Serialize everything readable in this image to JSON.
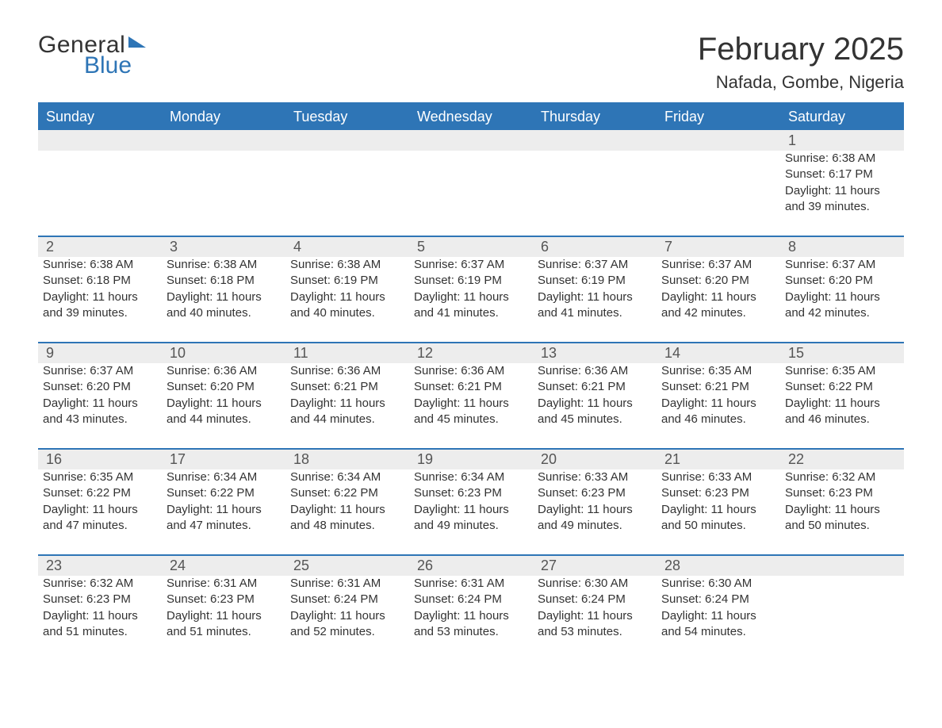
{
  "brand": {
    "general": "General",
    "blue": "Blue"
  },
  "title": "February 2025",
  "location": "Nafada, Gombe, Nigeria",
  "weekday_labels": [
    "Sunday",
    "Monday",
    "Tuesday",
    "Wednesday",
    "Thursday",
    "Friday",
    "Saturday"
  ],
  "style": {
    "header_bg": "#2e75b6",
    "header_fg": "#ffffff",
    "daynum_bg": "#ededed",
    "row_divider": "#2e75b6",
    "text_color": "#333333",
    "title_fontsize": 40,
    "location_fontsize": 22,
    "weekday_fontsize": 18,
    "body_fontsize": 15,
    "page_bg": "#ffffff"
  },
  "weeks": [
    [
      null,
      null,
      null,
      null,
      null,
      null,
      {
        "n": "1",
        "sunrise": "Sunrise: 6:38 AM",
        "sunset": "Sunset: 6:17 PM",
        "daylight": "Daylight: 11 hours and 39 minutes."
      }
    ],
    [
      {
        "n": "2",
        "sunrise": "Sunrise: 6:38 AM",
        "sunset": "Sunset: 6:18 PM",
        "daylight": "Daylight: 11 hours and 39 minutes."
      },
      {
        "n": "3",
        "sunrise": "Sunrise: 6:38 AM",
        "sunset": "Sunset: 6:18 PM",
        "daylight": "Daylight: 11 hours and 40 minutes."
      },
      {
        "n": "4",
        "sunrise": "Sunrise: 6:38 AM",
        "sunset": "Sunset: 6:19 PM",
        "daylight": "Daylight: 11 hours and 40 minutes."
      },
      {
        "n": "5",
        "sunrise": "Sunrise: 6:37 AM",
        "sunset": "Sunset: 6:19 PM",
        "daylight": "Daylight: 11 hours and 41 minutes."
      },
      {
        "n": "6",
        "sunrise": "Sunrise: 6:37 AM",
        "sunset": "Sunset: 6:19 PM",
        "daylight": "Daylight: 11 hours and 41 minutes."
      },
      {
        "n": "7",
        "sunrise": "Sunrise: 6:37 AM",
        "sunset": "Sunset: 6:20 PM",
        "daylight": "Daylight: 11 hours and 42 minutes."
      },
      {
        "n": "8",
        "sunrise": "Sunrise: 6:37 AM",
        "sunset": "Sunset: 6:20 PM",
        "daylight": "Daylight: 11 hours and 42 minutes."
      }
    ],
    [
      {
        "n": "9",
        "sunrise": "Sunrise: 6:37 AM",
        "sunset": "Sunset: 6:20 PM",
        "daylight": "Daylight: 11 hours and 43 minutes."
      },
      {
        "n": "10",
        "sunrise": "Sunrise: 6:36 AM",
        "sunset": "Sunset: 6:20 PM",
        "daylight": "Daylight: 11 hours and 44 minutes."
      },
      {
        "n": "11",
        "sunrise": "Sunrise: 6:36 AM",
        "sunset": "Sunset: 6:21 PM",
        "daylight": "Daylight: 11 hours and 44 minutes."
      },
      {
        "n": "12",
        "sunrise": "Sunrise: 6:36 AM",
        "sunset": "Sunset: 6:21 PM",
        "daylight": "Daylight: 11 hours and 45 minutes."
      },
      {
        "n": "13",
        "sunrise": "Sunrise: 6:36 AM",
        "sunset": "Sunset: 6:21 PM",
        "daylight": "Daylight: 11 hours and 45 minutes."
      },
      {
        "n": "14",
        "sunrise": "Sunrise: 6:35 AM",
        "sunset": "Sunset: 6:21 PM",
        "daylight": "Daylight: 11 hours and 46 minutes."
      },
      {
        "n": "15",
        "sunrise": "Sunrise: 6:35 AM",
        "sunset": "Sunset: 6:22 PM",
        "daylight": "Daylight: 11 hours and 46 minutes."
      }
    ],
    [
      {
        "n": "16",
        "sunrise": "Sunrise: 6:35 AM",
        "sunset": "Sunset: 6:22 PM",
        "daylight": "Daylight: 11 hours and 47 minutes."
      },
      {
        "n": "17",
        "sunrise": "Sunrise: 6:34 AM",
        "sunset": "Sunset: 6:22 PM",
        "daylight": "Daylight: 11 hours and 47 minutes."
      },
      {
        "n": "18",
        "sunrise": "Sunrise: 6:34 AM",
        "sunset": "Sunset: 6:22 PM",
        "daylight": "Daylight: 11 hours and 48 minutes."
      },
      {
        "n": "19",
        "sunrise": "Sunrise: 6:34 AM",
        "sunset": "Sunset: 6:23 PM",
        "daylight": "Daylight: 11 hours and 49 minutes."
      },
      {
        "n": "20",
        "sunrise": "Sunrise: 6:33 AM",
        "sunset": "Sunset: 6:23 PM",
        "daylight": "Daylight: 11 hours and 49 minutes."
      },
      {
        "n": "21",
        "sunrise": "Sunrise: 6:33 AM",
        "sunset": "Sunset: 6:23 PM",
        "daylight": "Daylight: 11 hours and 50 minutes."
      },
      {
        "n": "22",
        "sunrise": "Sunrise: 6:32 AM",
        "sunset": "Sunset: 6:23 PM",
        "daylight": "Daylight: 11 hours and 50 minutes."
      }
    ],
    [
      {
        "n": "23",
        "sunrise": "Sunrise: 6:32 AM",
        "sunset": "Sunset: 6:23 PM",
        "daylight": "Daylight: 11 hours and 51 minutes."
      },
      {
        "n": "24",
        "sunrise": "Sunrise: 6:31 AM",
        "sunset": "Sunset: 6:23 PM",
        "daylight": "Daylight: 11 hours and 51 minutes."
      },
      {
        "n": "25",
        "sunrise": "Sunrise: 6:31 AM",
        "sunset": "Sunset: 6:24 PM",
        "daylight": "Daylight: 11 hours and 52 minutes."
      },
      {
        "n": "26",
        "sunrise": "Sunrise: 6:31 AM",
        "sunset": "Sunset: 6:24 PM",
        "daylight": "Daylight: 11 hours and 53 minutes."
      },
      {
        "n": "27",
        "sunrise": "Sunrise: 6:30 AM",
        "sunset": "Sunset: 6:24 PM",
        "daylight": "Daylight: 11 hours and 53 minutes."
      },
      {
        "n": "28",
        "sunrise": "Sunrise: 6:30 AM",
        "sunset": "Sunset: 6:24 PM",
        "daylight": "Daylight: 11 hours and 54 minutes."
      },
      null
    ]
  ]
}
